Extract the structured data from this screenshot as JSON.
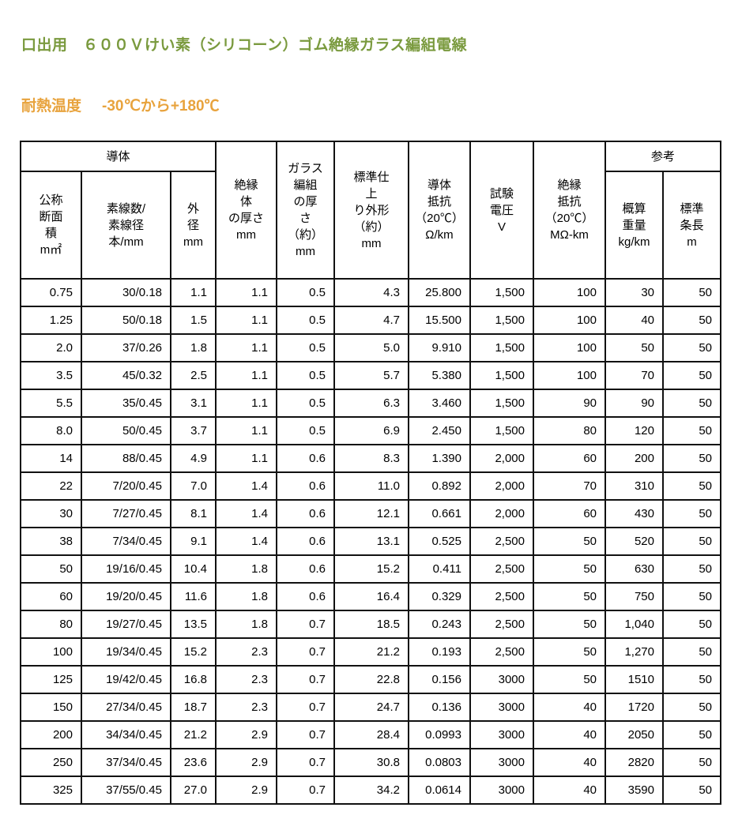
{
  "header": {
    "title": "口出用　６００Ｖけい素（シリコーン）ゴム絶縁ガラス編組電線",
    "heat_label": "耐熱温度",
    "heat_value": "-30℃から+180℃"
  },
  "colors": {
    "title_green": "#7a9a3e",
    "heat_orange": "#e8a33d",
    "table_border": "#111111",
    "background": "#ffffff"
  },
  "table": {
    "groups": {
      "conductor": "導体",
      "reference": "参考"
    },
    "columns": [
      {
        "id": "nominal-cross-section",
        "label": "公称\n断面\n積\nm㎡"
      },
      {
        "id": "strand-count-diameter",
        "label": "素線数/\n素線径\n本/mm"
      },
      {
        "id": "outer-diameter",
        "label": "外\n径\nmm"
      },
      {
        "id": "insulation-thickness",
        "label": "絶縁\n体\nの厚さ\nmm"
      },
      {
        "id": "glass-braid-thickness",
        "label": "ガラス\n編組\nの厚\nさ\n（約）\nmm"
      },
      {
        "id": "finished-outer-diameter",
        "label": "標準仕\n上\nり外形\n（約）\nmm"
      },
      {
        "id": "conductor-resistance",
        "label": "導体\n抵抗\n（20℃）\nΩ/km"
      },
      {
        "id": "test-voltage",
        "label": "試験\n電圧\nV"
      },
      {
        "id": "insulation-resistance",
        "label": "絶縁\n抵抗\n（20℃）\nMΩ-km"
      },
      {
        "id": "approx-weight",
        "label": "概算\n重量\nkg/km"
      },
      {
        "id": "standard-length",
        "label": "標準\n条長\nm"
      }
    ],
    "rows": [
      [
        "0.75",
        "30/0.18",
        "1.1",
        "1.1",
        "0.5",
        "4.3",
        "25.800",
        "1,500",
        "100",
        "30",
        "50"
      ],
      [
        "1.25",
        "50/0.18",
        "1.5",
        "1.1",
        "0.5",
        "4.7",
        "15.500",
        "1,500",
        "100",
        "40",
        "50"
      ],
      [
        "2.0",
        "37/0.26",
        "1.8",
        "1.1",
        "0.5",
        "5.0",
        "9.910",
        "1,500",
        "100",
        "50",
        "50"
      ],
      [
        "3.5",
        "45/0.32",
        "2.5",
        "1.1",
        "0.5",
        "5.7",
        "5.380",
        "1,500",
        "100",
        "70",
        "50"
      ],
      [
        "5.5",
        "35/0.45",
        "3.1",
        "1.1",
        "0.5",
        "6.3",
        "3.460",
        "1,500",
        "90",
        "90",
        "50"
      ],
      [
        "8.0",
        "50/0.45",
        "3.7",
        "1.1",
        "0.5",
        "6.9",
        "2.450",
        "1,500",
        "80",
        "120",
        "50"
      ],
      [
        "14",
        "88/0.45",
        "4.9",
        "1.1",
        "0.6",
        "8.3",
        "1.390",
        "2,000",
        "60",
        "200",
        "50"
      ],
      [
        "22",
        "7/20/0.45",
        "7.0",
        "1.4",
        "0.6",
        "11.0",
        "0.892",
        "2,000",
        "70",
        "310",
        "50"
      ],
      [
        "30",
        "7/27/0.45",
        "8.1",
        "1.4",
        "0.6",
        "12.1",
        "0.661",
        "2,000",
        "60",
        "430",
        "50"
      ],
      [
        "38",
        "7/34/0.45",
        "9.1",
        "1.4",
        "0.6",
        "13.1",
        "0.525",
        "2,500",
        "50",
        "520",
        "50"
      ],
      [
        "50",
        "19/16/0.45",
        "10.4",
        "1.8",
        "0.6",
        "15.2",
        "0.411",
        "2,500",
        "50",
        "630",
        "50"
      ],
      [
        "60",
        "19/20/0.45",
        "11.6",
        "1.8",
        "0.6",
        "16.4",
        "0.329",
        "2,500",
        "50",
        "750",
        "50"
      ],
      [
        "80",
        "19/27/0.45",
        "13.5",
        "1.8",
        "0.7",
        "18.5",
        "0.243",
        "2,500",
        "50",
        "1,040",
        "50"
      ],
      [
        "100",
        "19/34/0.45",
        "15.2",
        "2.3",
        "0.7",
        "21.2",
        "0.193",
        "2,500",
        "50",
        "1,270",
        "50"
      ],
      [
        "125",
        "19/42/0.45",
        "16.8",
        "2.3",
        "0.7",
        "22.8",
        "0.156",
        "3000",
        "50",
        "1510",
        "50"
      ],
      [
        "150",
        "27/34/0.45",
        "18.7",
        "2.3",
        "0.7",
        "24.7",
        "0.136",
        "3000",
        "40",
        "1720",
        "50"
      ],
      [
        "200",
        "34/34/0.45",
        "21.2",
        "2.9",
        "0.7",
        "28.4",
        "0.0993",
        "3000",
        "40",
        "2050",
        "50"
      ],
      [
        "250",
        "37/34/0.45",
        "23.6",
        "2.9",
        "0.7",
        "30.8",
        "0.0803",
        "3000",
        "40",
        "2820",
        "50"
      ],
      [
        "325",
        "37/55/0.45",
        "27.0",
        "2.9",
        "0.7",
        "34.2",
        "0.0614",
        "3000",
        "40",
        "3590",
        "50"
      ]
    ]
  }
}
